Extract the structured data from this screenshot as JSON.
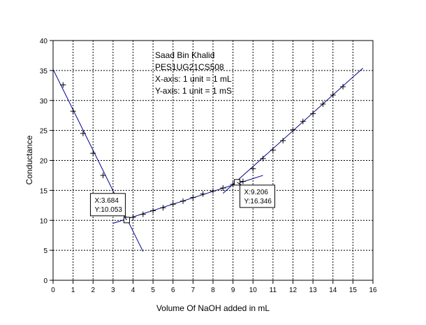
{
  "chart_data": {
    "type": "scatter",
    "xlabel": "Volume Of NaOH added in mL",
    "ylabel": "Conductance",
    "xlim": [
      0,
      16
    ],
    "ylim": [
      0,
      40
    ],
    "x_ticks": [
      0,
      1,
      2,
      3,
      4,
      5,
      6,
      7,
      8,
      9,
      10,
      11,
      12,
      13,
      14,
      15,
      16
    ],
    "y_ticks": [
      0,
      5,
      10,
      15,
      20,
      25,
      30,
      35,
      40
    ],
    "grid": true,
    "annotation_lines": [
      "Saad Bin Khalid",
      "PES1UG21CS508",
      "X-axis: 1 unit = 1 mL",
      "Y-axis: 1 unit = 1 mS"
    ],
    "series": [
      {
        "marker": "+",
        "color": "#000000",
        "points": [
          [
            0.5,
            32.6
          ],
          [
            1.0,
            28.2
          ],
          [
            1.5,
            24.5
          ],
          [
            2.0,
            21.2
          ],
          [
            2.5,
            17.5
          ],
          [
            4.0,
            10.5
          ],
          [
            4.5,
            11.0
          ],
          [
            5.0,
            11.6
          ],
          [
            5.5,
            12.1
          ],
          [
            6.0,
            12.7
          ],
          [
            6.5,
            13.2
          ],
          [
            7.0,
            13.8
          ],
          [
            7.5,
            14.4
          ],
          [
            8.0,
            14.9
          ],
          [
            8.5,
            15.4
          ],
          [
            9.0,
            16.0
          ],
          [
            9.5,
            16.5
          ],
          [
            10.0,
            18.6
          ],
          [
            10.5,
            20.3
          ],
          [
            11.0,
            21.7
          ],
          [
            11.5,
            23.3
          ],
          [
            12.0,
            25.1
          ],
          [
            12.5,
            26.5
          ],
          [
            13.0,
            27.8
          ],
          [
            13.5,
            29.4
          ],
          [
            14.0,
            30.9
          ],
          [
            14.5,
            32.3
          ]
        ]
      }
    ],
    "fit_lines": [
      {
        "color": "#00008b",
        "from": [
          0.0,
          35.2
        ],
        "to": [
          4.5,
          4.8
        ]
      },
      {
        "color": "#00008b",
        "from": [
          3.0,
          9.5
        ],
        "to": [
          10.5,
          17.5
        ]
      },
      {
        "color": "#00008b",
        "from": [
          8.5,
          14.5
        ],
        "to": [
          15.5,
          35.4
        ]
      }
    ],
    "datatips": [
      {
        "x": 3.684,
        "y": 10.053,
        "x_label": "X:3.684",
        "y_label": "Y:10.053",
        "box_side": "left"
      },
      {
        "x": 9.206,
        "y": 16.346,
        "x_label": "X:9.206",
        "y_label": "Y:16.346",
        "box_side": "right"
      }
    ]
  }
}
